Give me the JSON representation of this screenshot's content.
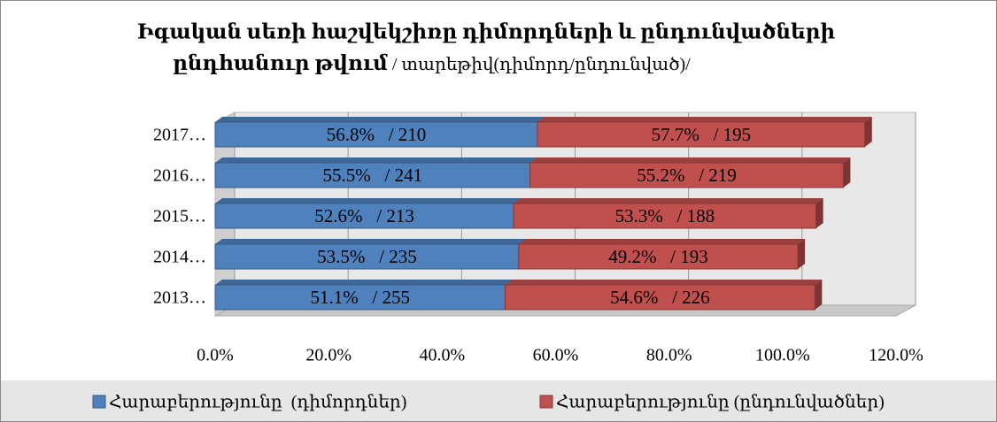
{
  "chart_data": {
    "type": "stacked-bar-horizontal",
    "title": [
      "Իգական սեռի հաշվեկշիռը դիմորդների և ընդունվածների",
      "ընդհանուր թվում",
      " / տարեթիվ(դիմորդ/ընդունված)/"
    ],
    "categories": [
      "2013…",
      "2014…",
      "2015…",
      "2016…",
      "2017…"
    ],
    "series": [
      {
        "name": "Հարաբերությունը  (դիմորդներ)",
        "color": "#4f81bd",
        "values": [
          51.1,
          53.5,
          52.6,
          55.5,
          56.8
        ],
        "value_labels": [
          "51.1%   / 255",
          "53.5%   / 235",
          "52.6%   / 213",
          "55.5%   / 241",
          "56.8%   / 210"
        ]
      },
      {
        "name": "Հարաբերությունը (ընդունվածներ)",
        "color": "#c0504d",
        "values": [
          54.6,
          49.2,
          53.3,
          55.2,
          57.7
        ],
        "value_labels": [
          "54.6%   / 226",
          "49.2%   / 193",
          "53.3%   / 188",
          "55.2%   / 219",
          "57.7%   / 195"
        ]
      }
    ],
    "xlim": [
      0,
      120
    ],
    "xticks": [
      {
        "value": 0,
        "label": "0.0%"
      },
      {
        "value": 20,
        "label": "20.0%"
      },
      {
        "value": 40,
        "label": "40.0%"
      },
      {
        "value": 60,
        "label": "60.0%"
      },
      {
        "value": 80,
        "label": "80.0%"
      },
      {
        "value": 100,
        "label": "100.0%"
      },
      {
        "value": 120,
        "label": "120.0%"
      }
    ],
    "grid": true,
    "legend": "bottom"
  }
}
